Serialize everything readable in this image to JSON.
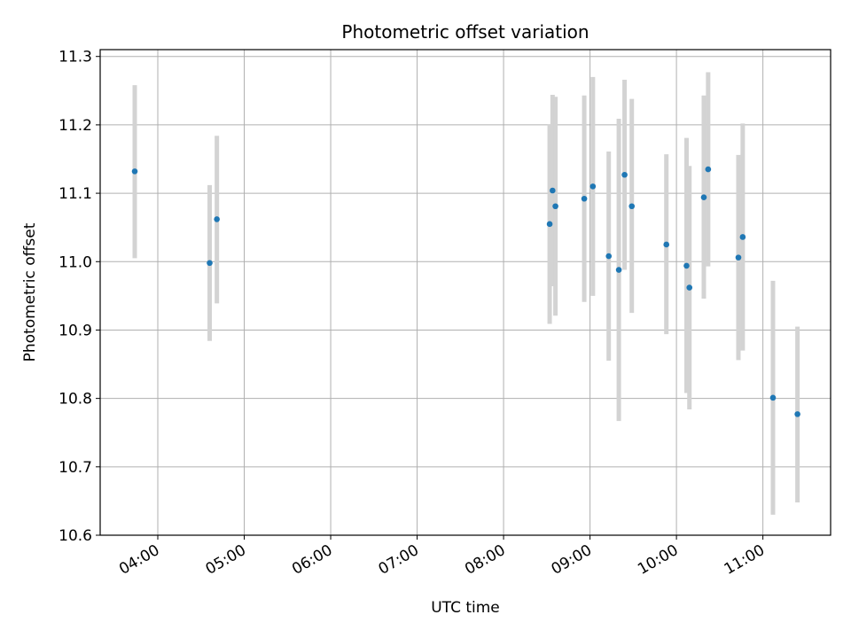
{
  "chart_data": {
    "type": "scatter",
    "title": "Photometric offset variation",
    "xlabel": "UTC time",
    "ylabel": "Photometric offset",
    "grid": true,
    "legend": "none",
    "colors": {
      "point": "#1f77b4",
      "errorbar": "#d3d3d3",
      "grid": "#b0b0b0"
    },
    "x_unit": "UTC time (HH:MM)",
    "xlim": [
      "03:20",
      "11:47"
    ],
    "ylim": [
      10.6,
      11.31
    ],
    "x_ticks": [
      "04:00",
      "05:00",
      "06:00",
      "07:00",
      "08:00",
      "09:00",
      "10:00",
      "11:00"
    ],
    "y_ticks": [
      "10.6",
      "10.7",
      "10.8",
      "10.9",
      "11.0",
      "11.1",
      "11.2",
      "11.3"
    ],
    "points": [
      {
        "x": "03:44",
        "y": 11.132,
        "yerr_low": 11.005,
        "yerr_high": 11.258
      },
      {
        "x": "04:36",
        "y": 10.998,
        "yerr_low": 10.884,
        "yerr_high": 11.112
      },
      {
        "x": "04:41",
        "y": 11.062,
        "yerr_low": 10.939,
        "yerr_high": 11.184
      },
      {
        "x": "08:32",
        "y": 11.055,
        "yerr_low": 10.909,
        "yerr_high": 11.201
      },
      {
        "x": "08:34",
        "y": 11.104,
        "yerr_low": 10.964,
        "yerr_high": 11.244
      },
      {
        "x": "08:36",
        "y": 11.081,
        "yerr_low": 10.921,
        "yerr_high": 11.241
      },
      {
        "x": "08:56",
        "y": 11.092,
        "yerr_low": 10.941,
        "yerr_high": 11.243
      },
      {
        "x": "09:02",
        "y": 11.11,
        "yerr_low": 10.95,
        "yerr_high": 11.27
      },
      {
        "x": "09:13",
        "y": 11.008,
        "yerr_low": 10.855,
        "yerr_high": 11.161
      },
      {
        "x": "09:20",
        "y": 10.988,
        "yerr_low": 10.767,
        "yerr_high": 11.209
      },
      {
        "x": "09:24",
        "y": 11.127,
        "yerr_low": 10.988,
        "yerr_high": 11.266
      },
      {
        "x": "09:29",
        "y": 11.081,
        "yerr_low": 10.925,
        "yerr_high": 11.238
      },
      {
        "x": "09:53",
        "y": 11.025,
        "yerr_low": 10.894,
        "yerr_high": 11.157
      },
      {
        "x": "10:07",
        "y": 10.994,
        "yerr_low": 10.808,
        "yerr_high": 11.181
      },
      {
        "x": "10:09",
        "y": 10.962,
        "yerr_low": 10.784,
        "yerr_high": 11.14
      },
      {
        "x": "10:19",
        "y": 11.094,
        "yerr_low": 10.946,
        "yerr_high": 11.243
      },
      {
        "x": "10:22",
        "y": 11.135,
        "yerr_low": 10.993,
        "yerr_high": 11.277
      },
      {
        "x": "10:43",
        "y": 11.006,
        "yerr_low": 10.856,
        "yerr_high": 11.156
      },
      {
        "x": "10:46",
        "y": 11.036,
        "yerr_low": 10.87,
        "yerr_high": 11.202
      },
      {
        "x": "11:07",
        "y": 10.801,
        "yerr_low": 10.63,
        "yerr_high": 10.972
      },
      {
        "x": "11:24",
        "y": 10.777,
        "yerr_low": 10.648,
        "yerr_high": 10.905
      }
    ]
  }
}
